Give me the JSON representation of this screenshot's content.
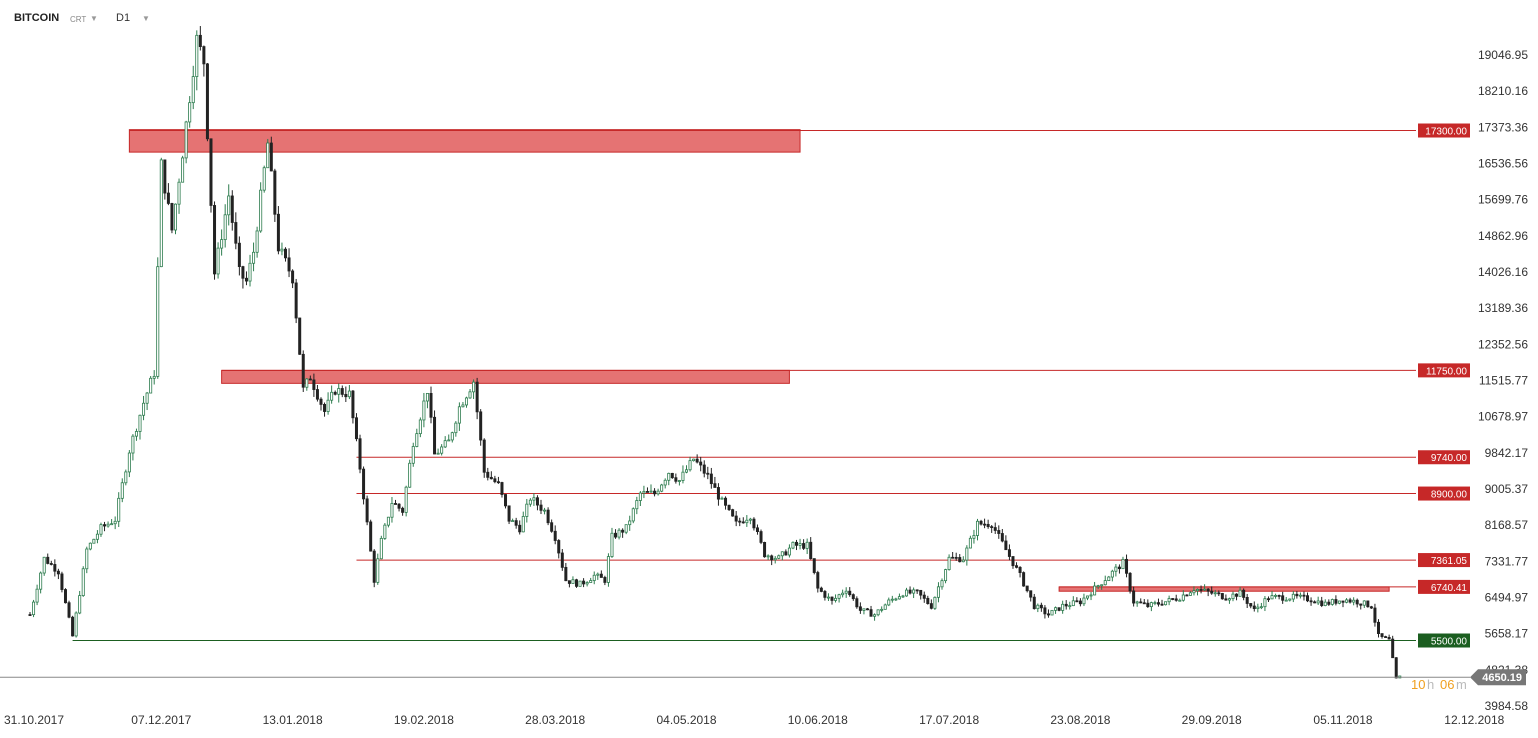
{
  "header": {
    "symbol": "BITCOIN",
    "mode": "CRT",
    "timeframe": "D1",
    "caret_icon": "chevron-down-icon"
  },
  "colors": {
    "up": "#2e7d4f",
    "down": "#222222",
    "resistance": "#c62828",
    "support": "#1b5e20",
    "zone_fill": "#e57373",
    "price_tag": "#777777",
    "countdown_hours": "#f0a020",
    "countdown_minutes": "#f0a020"
  },
  "price_axis": {
    "ticks": [
      "19046.95",
      "18210.16",
      "17373.36",
      "16536.56",
      "15699.76",
      "14862.96",
      "14026.16",
      "13189.36",
      "12352.56",
      "11515.77",
      "10678.97",
      "9842.17",
      "9005.37",
      "8168.57",
      "7331.77",
      "6494.97",
      "5658.17",
      "4821.38",
      "3984.58"
    ]
  },
  "time_axis": {
    "ticks": [
      "31.10.2017",
      "07.12.2017",
      "13.01.2018",
      "19.02.2018",
      "28.03.2018",
      "04.05.2018",
      "10.06.2018",
      "17.07.2018",
      "23.08.2018",
      "29.09.2018",
      "05.11.2018",
      "12.12.2018"
    ]
  },
  "current_price": {
    "value": 4650.19,
    "label": "4650.19",
    "countdown_hours": "10",
    "countdown_h": "h",
    "countdown_minutes": "06",
    "countdown_m": "m"
  },
  "chart_data": {
    "type": "candlestick",
    "title": "",
    "symbol": "BITCOIN",
    "timeframe": "D1",
    "x_range": [
      "31.10.2017",
      "12.12.2018"
    ],
    "y_range": [
      3984.58,
      19046.95
    ],
    "horizontal_levels": [
      {
        "label": "17300.00",
        "value": 17300.0,
        "kind": "resistance",
        "zone": [
          16800,
          17320
        ],
        "zone_x": [
          "28.11.2017",
          "05.06.2018"
        ]
      },
      {
        "label": "11750.00",
        "value": 11750.0,
        "kind": "resistance",
        "zone": [
          11450,
          11750
        ],
        "zone_x": [
          "24.12.2017",
          "02.06.2018"
        ]
      },
      {
        "label": "9740.00",
        "value": 9740.0,
        "kind": "resistance"
      },
      {
        "label": "8900.00",
        "value": 8900.0,
        "kind": "resistance"
      },
      {
        "label": "7361.05",
        "value": 7361.05,
        "kind": "resistance"
      },
      {
        "label": "6740.41",
        "value": 6740.41,
        "kind": "resistance",
        "zone": [
          6640,
          6740
        ],
        "zone_x": [
          "17.08.2018",
          "18.11.2018"
        ]
      },
      {
        "label": "5500.00",
        "value": 5500.0,
        "kind": "support"
      }
    ],
    "close_path": [
      [
        "31.10.2017",
        6100
      ],
      [
        "04.11.2017",
        7400
      ],
      [
        "08.11.2017",
        7100
      ],
      [
        "12.11.2017",
        5600
      ],
      [
        "16.11.2017",
        7600
      ],
      [
        "20.11.2017",
        8100
      ],
      [
        "24.11.2017",
        8300
      ],
      [
        "28.11.2017",
        9900
      ],
      [
        "02.12.2017",
        11000
      ],
      [
        "05.12.2017",
        11700
      ],
      [
        "07.12.2017",
        16500
      ],
      [
        "10.12.2017",
        15000
      ],
      [
        "13.12.2017",
        16800
      ],
      [
        "17.12.2017",
        19400
      ],
      [
        "19.12.2017",
        18900
      ],
      [
        "22.12.2017",
        14000
      ],
      [
        "26.12.2017",
        15800
      ],
      [
        "29.12.2017",
        14000
      ],
      [
        "31.12.2017",
        13800
      ],
      [
        "02.01.2018",
        14500
      ],
      [
        "06.01.2018",
        17000
      ],
      [
        "09.01.2018",
        14600
      ],
      [
        "13.01.2018",
        13900
      ],
      [
        "16.01.2018",
        11300
      ],
      [
        "18.01.2018",
        11600
      ],
      [
        "22.01.2018",
        10800
      ],
      [
        "25.01.2018",
        11300
      ],
      [
        "29.01.2018",
        11200
      ],
      [
        "01.02.2018",
        9500
      ],
      [
        "05.02.2018",
        6900
      ],
      [
        "07.02.2018",
        7800
      ],
      [
        "10.02.2018",
        8700
      ],
      [
        "13.02.2018",
        8500
      ],
      [
        "16.02.2018",
        10100
      ],
      [
        "20.02.2018",
        11300
      ],
      [
        "22.02.2018",
        9800
      ],
      [
        "26.02.2018",
        10100
      ],
      [
        "01.03.2018",
        10900
      ],
      [
        "05.03.2018",
        11500
      ],
      [
        "08.03.2018",
        9400
      ],
      [
        "12.03.2018",
        9100
      ],
      [
        "15.03.2018",
        8300
      ],
      [
        "18.03.2018",
        8100
      ],
      [
        "21.03.2018",
        8800
      ],
      [
        "25.03.2018",
        8500
      ],
      [
        "28.03.2018",
        7900
      ],
      [
        "31.03.2018",
        6900
      ],
      [
        "04.04.2018",
        6800
      ],
      [
        "08.04.2018",
        7000
      ],
      [
        "11.04.2018",
        6900
      ],
      [
        "13.04.2018",
        7900
      ],
      [
        "17.04.2018",
        8100
      ],
      [
        "21.04.2018",
        8900
      ],
      [
        "25.04.2018",
        8900
      ],
      [
        "29.04.2018",
        9400
      ],
      [
        "02.05.2018",
        9200
      ],
      [
        "06.05.2018",
        9700
      ],
      [
        "10.05.2018",
        9300
      ],
      [
        "14.05.2018",
        8700
      ],
      [
        "18.05.2018",
        8200
      ],
      [
        "22.05.2018",
        8400
      ],
      [
        "26.05.2018",
        7500
      ],
      [
        "30.05.2018",
        7400
      ],
      [
        "03.06.2018",
        7700
      ],
      [
        "07.06.2018",
        7700
      ],
      [
        "10.06.2018",
        6700
      ],
      [
        "14.06.2018",
        6400
      ],
      [
        "18.06.2018",
        6700
      ],
      [
        "22.06.2018",
        6200
      ],
      [
        "26.06.2018",
        6100
      ],
      [
        "30.06.2018",
        6400
      ],
      [
        "04.07.2018",
        6600
      ],
      [
        "08.07.2018",
        6600
      ],
      [
        "12.07.2018",
        6300
      ],
      [
        "17.07.2018",
        7400
      ],
      [
        "21.07.2018",
        7400
      ],
      [
        "25.07.2018",
        8200
      ],
      [
        "29.07.2018",
        8200
      ],
      [
        "02.08.2018",
        7600
      ],
      [
        "06.08.2018",
        7000
      ],
      [
        "10.08.2018",
        6300
      ],
      [
        "14.08.2018",
        6100
      ],
      [
        "18.08.2018",
        6300
      ],
      [
        "23.08.2018",
        6400
      ],
      [
        "27.08.2018",
        6700
      ],
      [
        "31.08.2018",
        7000
      ],
      [
        "04.09.2018",
        7300
      ],
      [
        "07.09.2018",
        6400
      ],
      [
        "11.09.2018",
        6300
      ],
      [
        "16.09.2018",
        6400
      ],
      [
        "20.09.2018",
        6500
      ],
      [
        "24.09.2018",
        6700
      ],
      [
        "29.09.2018",
        6600
      ],
      [
        "03.10.2018",
        6500
      ],
      [
        "07.10.2018",
        6600
      ],
      [
        "11.10.2018",
        6200
      ],
      [
        "15.10.2018",
        6500
      ],
      [
        "19.10.2018",
        6500
      ],
      [
        "23.10.2018",
        6500
      ],
      [
        "27.10.2018",
        6450
      ],
      [
        "31.10.2018",
        6350
      ],
      [
        "05.11.2018",
        6450
      ],
      [
        "09.11.2018",
        6400
      ],
      [
        "13.11.2018",
        6300
      ],
      [
        "15.11.2018",
        5600
      ],
      [
        "18.11.2018",
        5500
      ],
      [
        "20.11.2018",
        4600
      ],
      [
        "21.11.2018",
        4650
      ]
    ]
  }
}
